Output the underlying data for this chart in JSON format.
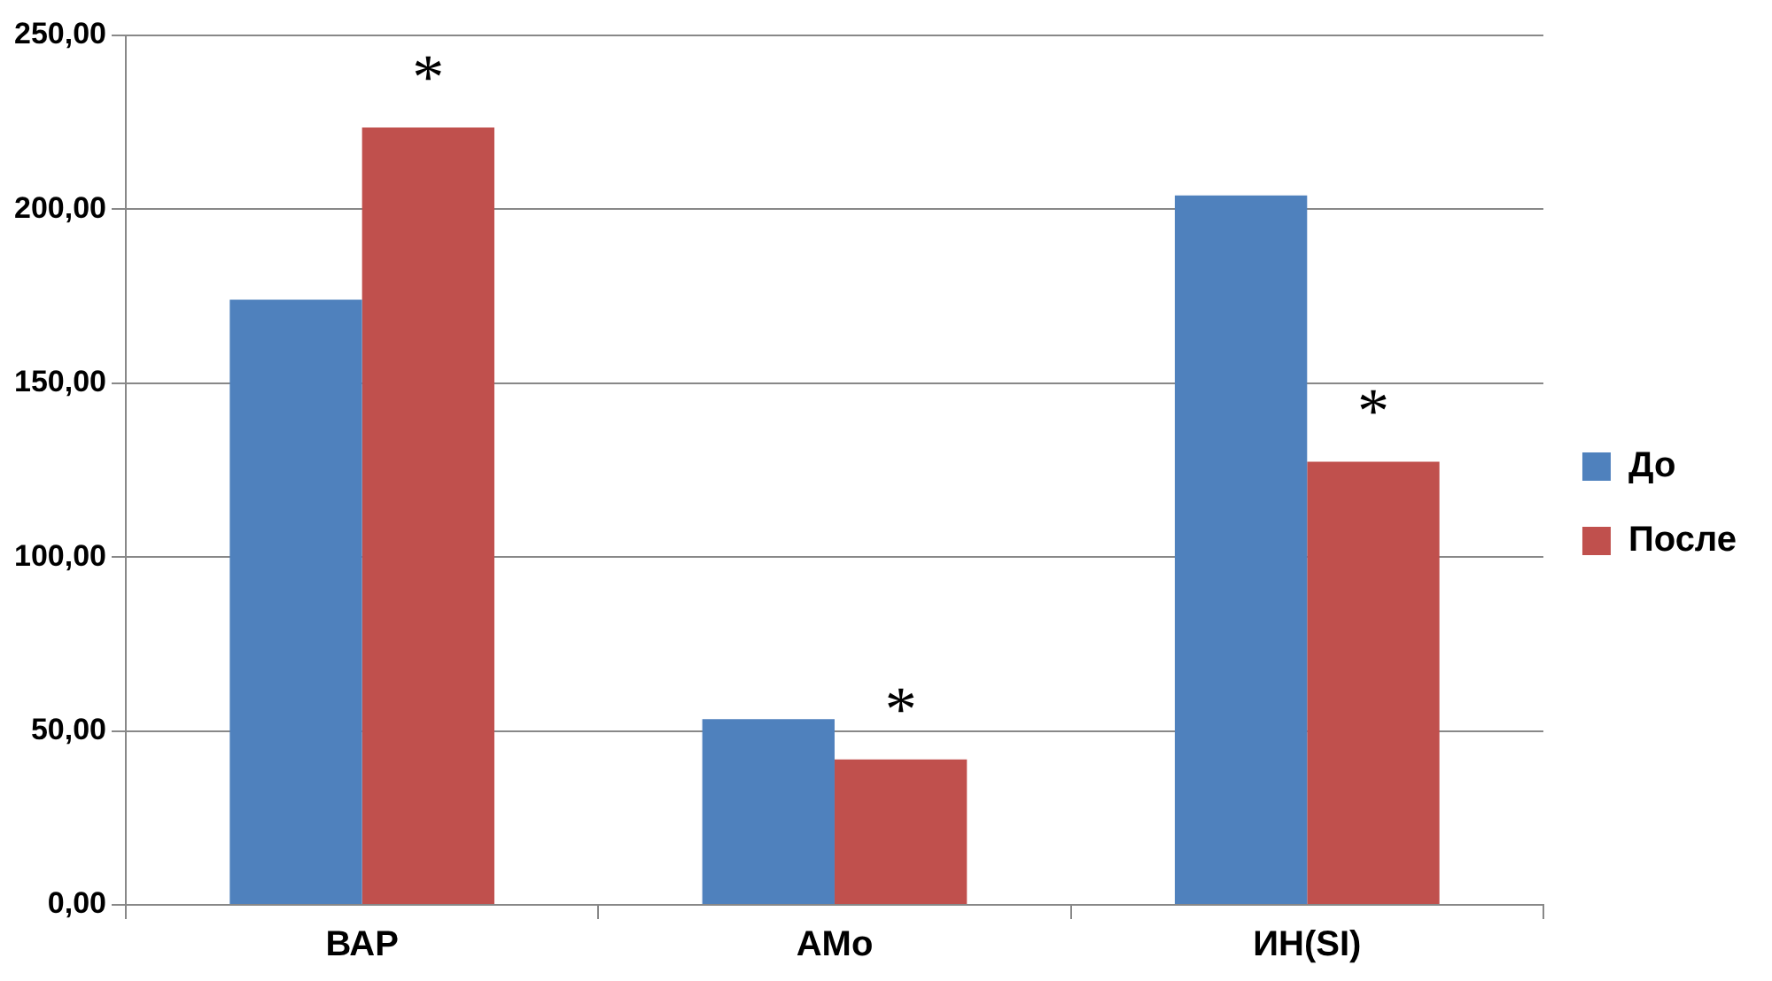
{
  "chart_data": {
    "type": "bar",
    "categories": [
      "ВАР",
      "АМо",
      "ИН(SI)"
    ],
    "series": [
      {
        "name": "До",
        "color": "#4f81bd",
        "values": [
          174,
          53.4,
          204
        ]
      },
      {
        "name": "После",
        "color": "#c0504d",
        "values": [
          223.5,
          41.8,
          127.4
        ]
      }
    ],
    "ylim": [
      0,
      250
    ],
    "yticks": [
      {
        "value": 0,
        "label": "0,00"
      },
      {
        "value": 50,
        "label": "50,00"
      },
      {
        "value": 100,
        "label": "100,00"
      },
      {
        "value": 150,
        "label": "150,00"
      },
      {
        "value": 200,
        "label": "200,00"
      },
      {
        "value": 250,
        "label": "250,00"
      }
    ],
    "grid": "y",
    "legend": "right",
    "annotations": [
      "*",
      "*",
      "*"
    ]
  }
}
